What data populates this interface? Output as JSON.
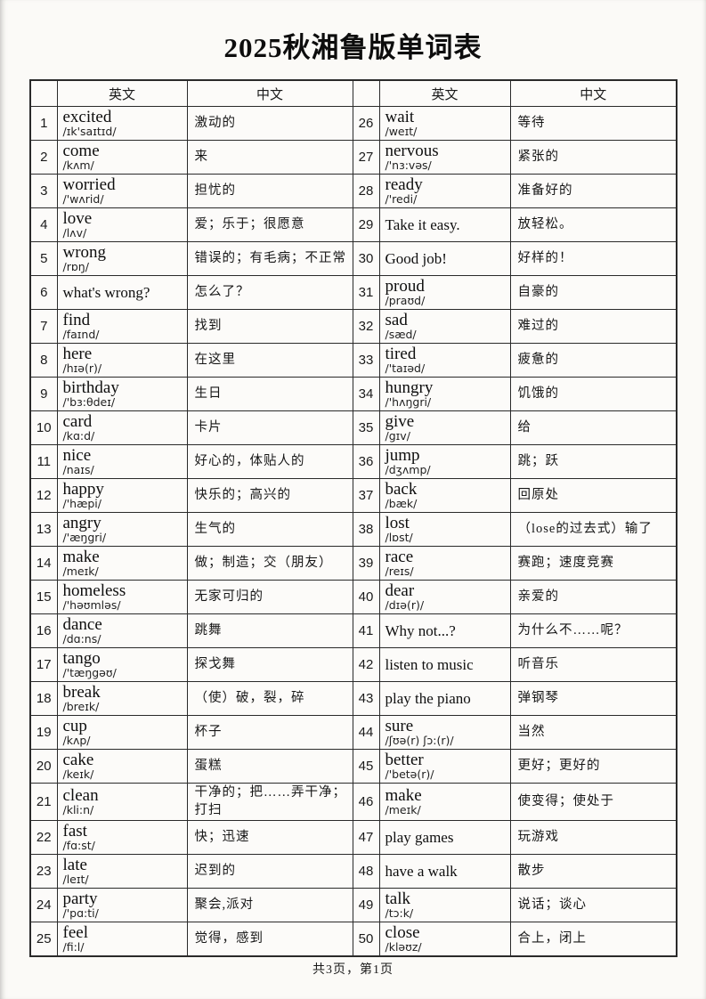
{
  "title": "2025秋湘鲁版单词表",
  "footer": "共3页，第1页",
  "table": {
    "headers": [
      "",
      "英文",
      "中文",
      "",
      "英文",
      "中文"
    ],
    "left_rows": [
      {
        "num": "1",
        "word": "excited",
        "phonetic": "/ɪk'saɪtɪd/",
        "meaning": "激动的"
      },
      {
        "num": "2",
        "word": "come",
        "phonetic": "/kʌm/",
        "meaning": "来"
      },
      {
        "num": "3",
        "word": "worried",
        "phonetic": "/'wʌrid/",
        "meaning": "担忧的"
      },
      {
        "num": "4",
        "word": "love",
        "phonetic": "/lʌv/",
        "meaning": "爱；乐于；很愿意"
      },
      {
        "num": "5",
        "word": "wrong",
        "phonetic": "/rɒŋ/",
        "meaning": "错误的；有毛病；不正常"
      },
      {
        "num": "6",
        "word": "what's wrong?",
        "phonetic": "",
        "meaning": "怎么了？"
      },
      {
        "num": "7",
        "word": "find",
        "phonetic": "/faɪnd/",
        "meaning": "找到"
      },
      {
        "num": "8",
        "word": "here",
        "phonetic": "/hɪə(r)/",
        "meaning": "在这里"
      },
      {
        "num": "9",
        "word": "birthday",
        "phonetic": "/'bɜ:θdeɪ/",
        "meaning": "生日"
      },
      {
        "num": "10",
        "word": "card",
        "phonetic": "/kɑ:d/",
        "meaning": "卡片"
      },
      {
        "num": "11",
        "word": "nice",
        "phonetic": "/naɪs/",
        "meaning": "好心的，体贴人的"
      },
      {
        "num": "12",
        "word": "happy",
        "phonetic": "/'hæpi/",
        "meaning": "快乐的；高兴的"
      },
      {
        "num": "13",
        "word": "angry",
        "phonetic": "/'æŋgri/",
        "meaning": "生气的"
      },
      {
        "num": "14",
        "word": "make",
        "phonetic": "/meɪk/",
        "meaning": "做；制造；交（朋友）"
      },
      {
        "num": "15",
        "word": "homeless",
        "phonetic": "/'həʊmləs/",
        "meaning": "无家可归的"
      },
      {
        "num": "16",
        "word": "dance",
        "phonetic": "/dɑ:ns/",
        "meaning": "跳舞"
      },
      {
        "num": "17",
        "word": "tango",
        "phonetic": "/'tæŋgəʊ/",
        "meaning": "探戈舞"
      },
      {
        "num": "18",
        "word": "break",
        "phonetic": "/breɪk/",
        "meaning": "（使）破，裂，碎"
      },
      {
        "num": "19",
        "word": "cup",
        "phonetic": "/kʌp/",
        "meaning": "杯子"
      },
      {
        "num": "20",
        "word": "cake",
        "phonetic": "/keɪk/",
        "meaning": "蛋糕"
      },
      {
        "num": "21",
        "word": "clean",
        "phonetic": "/kli:n/",
        "meaning": "干净的；把……弄干净；打扫"
      },
      {
        "num": "22",
        "word": "fast",
        "phonetic": "/fɑ:st/",
        "meaning": "快；迅速"
      },
      {
        "num": "23",
        "word": "late",
        "phonetic": "/leɪt/",
        "meaning": "迟到的"
      },
      {
        "num": "24",
        "word": "party",
        "phonetic": "/'pɑ:ti/",
        "meaning": "聚会,派对"
      },
      {
        "num": "25",
        "word": "feel",
        "phonetic": "/fi:l/",
        "meaning": "觉得，感到"
      }
    ],
    "right_rows": [
      {
        "num": "26",
        "word": "wait",
        "phonetic": "/weɪt/",
        "meaning": "等待"
      },
      {
        "num": "27",
        "word": "nervous",
        "phonetic": "/'nɜ:vəs/",
        "meaning": "紧张的"
      },
      {
        "num": "28",
        "word": "ready",
        "phonetic": "/'redi/",
        "meaning": "准备好的"
      },
      {
        "num": "29",
        "word": "Take it easy.",
        "phonetic": "",
        "meaning": "放轻松。"
      },
      {
        "num": "30",
        "word": "Good job!",
        "phonetic": "",
        "meaning": "好样的！"
      },
      {
        "num": "31",
        "word": "proud",
        "phonetic": "/praʊd/",
        "meaning": "自豪的"
      },
      {
        "num": "32",
        "word": "sad",
        "phonetic": "/sæd/",
        "meaning": "难过的"
      },
      {
        "num": "33",
        "word": "tired",
        "phonetic": "/'taɪəd/",
        "meaning": "疲惫的"
      },
      {
        "num": "34",
        "word": "hungry",
        "phonetic": "/'hʌŋgri/",
        "meaning": "饥饿的"
      },
      {
        "num": "35",
        "word": "give",
        "phonetic": "/gɪv/",
        "meaning": "给"
      },
      {
        "num": "36",
        "word": "jump",
        "phonetic": "/dʒʌmp/",
        "meaning": "跳；跃"
      },
      {
        "num": "37",
        "word": "back",
        "phonetic": "/bæk/",
        "meaning": "回原处"
      },
      {
        "num": "38",
        "word": "lost",
        "phonetic": "/lɒst/",
        "meaning": "（lose的过去式）输了"
      },
      {
        "num": "39",
        "word": "race",
        "phonetic": "/reɪs/",
        "meaning": "赛跑；速度竞赛"
      },
      {
        "num": "40",
        "word": "dear",
        "phonetic": "/dɪə(r)/",
        "meaning": "亲爱的"
      },
      {
        "num": "41",
        "word": "Why not...?",
        "phonetic": "",
        "meaning": "为什么不……呢？"
      },
      {
        "num": "42",
        "word": "listen to music",
        "phonetic": "",
        "meaning": "听音乐"
      },
      {
        "num": "43",
        "word": "play the piano",
        "phonetic": "",
        "meaning": "弹钢琴"
      },
      {
        "num": "44",
        "word": "sure",
        "phonetic": "/ʃʊə(r) ʃɔ:(r)/",
        "meaning": "当然"
      },
      {
        "num": "45",
        "word": "better",
        "phonetic": "/'betə(r)/",
        "meaning": "更好；更好的"
      },
      {
        "num": "46",
        "word": "make",
        "phonetic": "/meɪk/",
        "meaning": "使变得；使处于"
      },
      {
        "num": "47",
        "word": "play games",
        "phonetic": "",
        "meaning": "玩游戏"
      },
      {
        "num": "48",
        "word": "have a walk",
        "phonetic": "",
        "meaning": "散步"
      },
      {
        "num": "49",
        "word": "talk",
        "phonetic": "/tɔ:k/",
        "meaning": "说话；谈心"
      },
      {
        "num": "50",
        "word": "close",
        "phonetic": "/kləʊz/",
        "meaning": "合上，闭上"
      }
    ]
  }
}
